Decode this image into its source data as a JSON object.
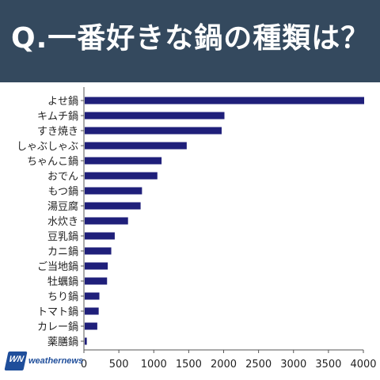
{
  "header": {
    "title": "Q.一番好きな鍋の種類は？"
  },
  "logo": {
    "mark": "WN",
    "text": "weathernews"
  },
  "colors": {
    "header_bg": "#34495e",
    "bar": "#1f1f7a",
    "title_text": "#ffffff"
  },
  "chart_data": {
    "type": "bar",
    "orientation": "horizontal",
    "categories": [
      "よせ鍋",
      "キムチ鍋",
      "すき焼き",
      "しゃぶしゃぶ",
      "ちゃんこ鍋",
      "おでん",
      "もつ鍋",
      "湯豆腐",
      "水炊き",
      "豆乳鍋",
      "カニ鍋",
      "ご当地鍋",
      "牡蠣鍋",
      "ちり鍋",
      "トマト鍋",
      "カレー鍋",
      "薬膳鍋"
    ],
    "values": [
      4000,
      2000,
      1960,
      1460,
      1100,
      1040,
      820,
      800,
      620,
      430,
      380,
      330,
      320,
      210,
      200,
      180,
      30
    ],
    "xlim": [
      0,
      4000
    ],
    "xticks": [
      0,
      500,
      1000,
      1500,
      2000,
      2500,
      3000,
      3500,
      4000
    ],
    "xlabel": "",
    "ylabel": "",
    "grid": false
  }
}
